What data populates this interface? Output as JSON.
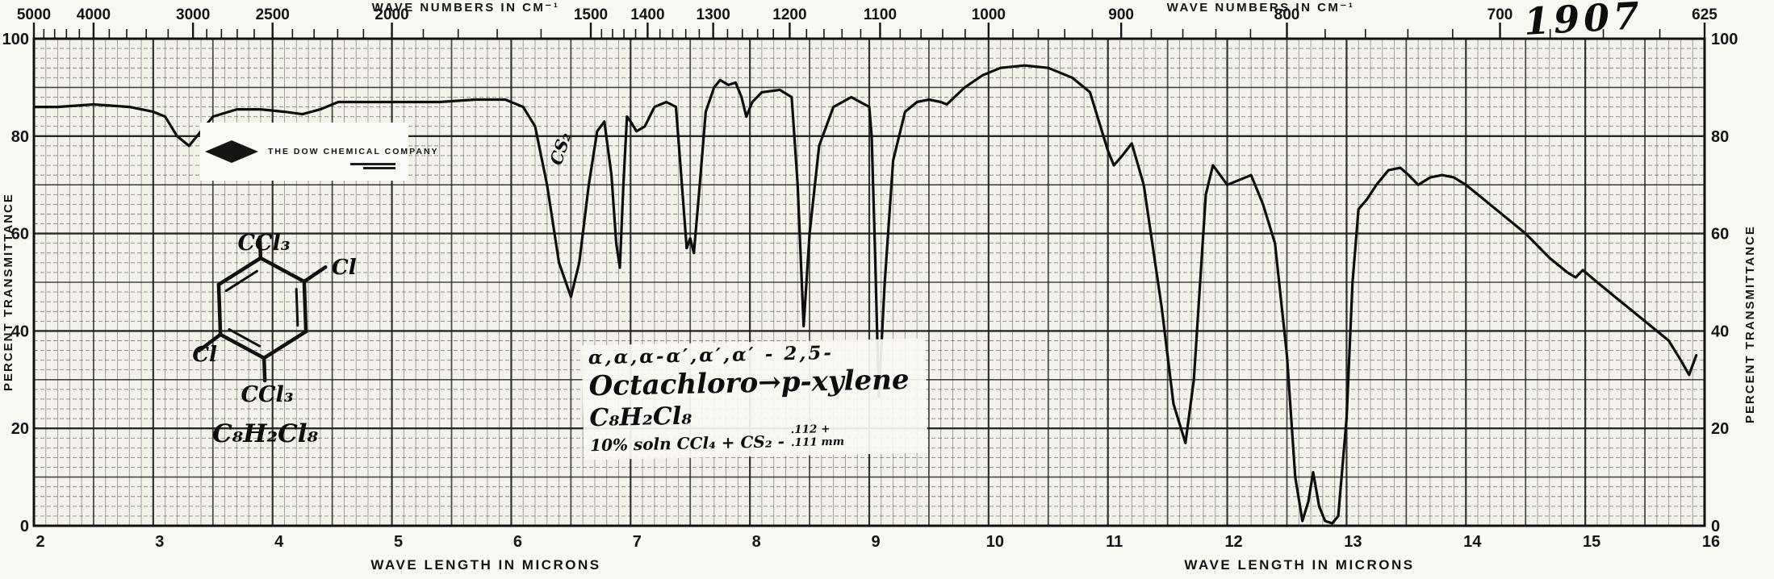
{
  "titles": {
    "top_axis": "WAVE NUMBERS IN CM⁻¹",
    "bottom_axis": "WAVE LENGTH IN MICRONS",
    "y_axis": "PERCENT TRANSMITTANCE"
  },
  "branding": {
    "company": "THE DOW CHEMICAL COMPANY",
    "logo_icon": "diamond-icon"
  },
  "handwritten": {
    "spectrum_number": "1907",
    "band_annotation": "CS₂",
    "name_prefix": "α,α,α-α′,α′,α′ - 2,5-",
    "name_main": "Octachloro→p-xylene",
    "formula": "C₈H₂Cl₈",
    "conditions": "10% soln CCl₄ + CS₂ -",
    "thickness_top": ".112 +",
    "thickness_bottom": ".111 mm"
  },
  "structure": {
    "top_group": "CCl₃",
    "right_group": "Cl",
    "left_group": "Cl",
    "bottom_group": "CCl₃",
    "formula": "C₈H₂Cl₈"
  },
  "axes": {
    "top_major_ticks": [
      "5000",
      "4000",
      "3000",
      "2500",
      "2000",
      "1500",
      "1400",
      "1300",
      "1200",
      "1100",
      "1000",
      "900",
      "800",
      "700",
      "625"
    ],
    "bottom_ticks": [
      "2",
      "3",
      "4",
      "5",
      "6",
      "7",
      "8",
      "9",
      "10",
      "11",
      "12",
      "13",
      "14",
      "15",
      "16"
    ],
    "y_ticks": [
      "100",
      "80",
      "60",
      "40",
      "20",
      "0"
    ]
  },
  "chart_data": {
    "type": "line",
    "title": "Infrared spectrum No. 1907 — α,α,α-α′,α′,α′-2,5-Octachloro-p-xylene (C₈H₂Cl₈), 10% soln CCl₄ + CS₂, .112/.111 mm cells",
    "xlabel": "WAVE LENGTH IN MICRONS",
    "x2label": "WAVE NUMBERS IN CM⁻¹",
    "ylabel": "PERCENT TRANSMITTANCE",
    "xlim": [
      2,
      16
    ],
    "ylim": [
      0,
      100
    ],
    "grid": true,
    "x2_ticks_cm1": [
      5000,
      4000,
      3000,
      2500,
      2000,
      1500,
      1400,
      1300,
      1200,
      1100,
      1000,
      900,
      800,
      700,
      625
    ],
    "x_ticks_microns": [
      2,
      3,
      4,
      5,
      6,
      7,
      8,
      9,
      10,
      11,
      12,
      13,
      14,
      15,
      16
    ],
    "y_ticks": [
      0,
      20,
      40,
      60,
      80,
      100
    ],
    "major_absorption_bands_microns": [
      3.3,
      6.5,
      6.9,
      7.5,
      8.45,
      9.08,
      11.65,
      12.63,
      12.85,
      15.85
    ],
    "x_microns": [
      2.0,
      2.2,
      2.5,
      2.8,
      3.0,
      3.1,
      3.2,
      3.3,
      3.4,
      3.5,
      3.7,
      3.9,
      4.1,
      4.25,
      4.4,
      4.55,
      4.8,
      5.1,
      5.4,
      5.7,
      5.95,
      6.1,
      6.2,
      6.3,
      6.4,
      6.5,
      6.57,
      6.65,
      6.72,
      6.78,
      6.84,
      6.88,
      6.91,
      6.94,
      6.97,
      7.0,
      7.05,
      7.12,
      7.2,
      7.3,
      7.38,
      7.43,
      7.47,
      7.5,
      7.53,
      7.58,
      7.63,
      7.7,
      7.75,
      7.82,
      7.88,
      7.93,
      7.97,
      8.02,
      8.1,
      8.25,
      8.35,
      8.4,
      8.45,
      8.5,
      8.58,
      8.7,
      8.85,
      9.0,
      9.02,
      9.05,
      9.08,
      9.13,
      9.2,
      9.3,
      9.4,
      9.5,
      9.6,
      9.65,
      9.8,
      9.95,
      10.1,
      10.3,
      10.5,
      10.7,
      10.85,
      11.0,
      11.05,
      11.12,
      11.2,
      11.3,
      11.45,
      11.55,
      11.65,
      11.72,
      11.82,
      11.88,
      12.0,
      12.1,
      12.2,
      12.3,
      12.4,
      12.5,
      12.57,
      12.63,
      12.68,
      12.72,
      12.77,
      12.82,
      12.88,
      12.93,
      13.0,
      13.05,
      13.1,
      13.17,
      13.25,
      13.35,
      13.45,
      13.52,
      13.6,
      13.7,
      13.8,
      13.9,
      14.0,
      14.15,
      14.3,
      14.5,
      14.7,
      14.85,
      14.92,
      14.98,
      15.1,
      15.3,
      15.5,
      15.7,
      15.8,
      15.87,
      15.93
    ],
    "transmittance_pct": [
      86,
      86,
      86.5,
      86,
      85,
      84,
      80,
      78,
      81,
      84,
      85.5,
      85.5,
      85,
      84.5,
      85.5,
      87,
      87,
      87,
      87,
      87.5,
      87.5,
      86,
      82,
      70,
      54,
      47,
      54,
      70,
      81,
      83,
      72,
      58,
      53,
      70,
      84,
      83,
      81,
      82,
      86,
      87,
      86,
      70,
      57,
      59,
      56,
      70,
      85,
      90,
      91.5,
      90.5,
      91,
      88,
      84,
      87,
      89,
      89.5,
      88,
      70,
      41,
      60,
      78,
      86,
      88,
      86,
      80,
      55,
      26.5,
      50,
      75,
      85,
      87,
      87.5,
      87,
      86.5,
      90,
      92.5,
      94,
      94.5,
      94,
      92,
      89,
      77,
      74,
      76,
      78.5,
      70,
      45,
      25,
      17,
      30,
      68,
      74,
      70,
      71,
      72,
      66,
      58,
      35,
      10,
      1,
      5,
      11,
      4,
      1,
      0.5,
      2,
      22,
      50,
      65,
      67,
      70,
      73,
      73.5,
      72,
      70,
      71.5,
      72,
      71.5,
      70,
      67,
      64,
      60,
      55,
      52,
      51,
      52.5,
      50,
      46,
      42,
      38,
      34,
      31,
      35
    ]
  }
}
